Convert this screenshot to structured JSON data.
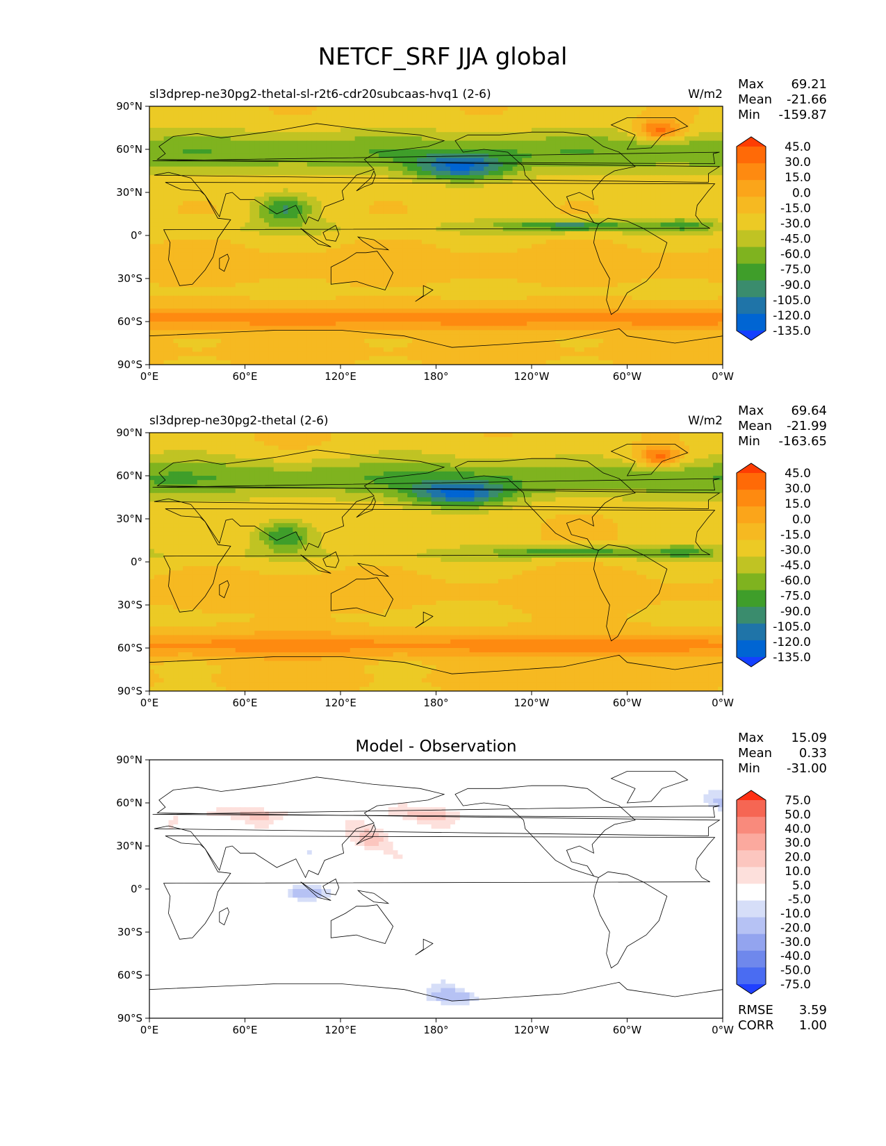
{
  "figure_title": "NETCF_SRF JJA global",
  "colors": {
    "model_scale": [
      "#1440ff",
      "#0065d3",
      "#1f74a8",
      "#3a8c6d",
      "#3f9e2a",
      "#7fb31f",
      "#c0c323",
      "#ecca25",
      "#f6b921",
      "#fba51a",
      "#fe8a10",
      "#ff6a07",
      "#fe3d03"
    ],
    "diff_scale": [
      "#2040ff",
      "#4a6cf2",
      "#6f88ec",
      "#93a4ef",
      "#b6c2f4",
      "#d6def8",
      "#ffffff",
      "#fde0dc",
      "#fcc6bf",
      "#fba99e",
      "#f98a7c",
      "#f66653",
      "#fe2f13"
    ]
  },
  "chart_data": [
    {
      "type": "heatmap",
      "title": "sl3dprep-ne30pg2-thetal-sl-r2t6-cdr20subcaas-hvq1 (2-6)",
      "units": "W/m2",
      "stats": [
        {
          "label": "Max",
          "value": "69.21"
        },
        {
          "label": "Mean",
          "value": "-21.66"
        },
        {
          "label": "Min",
          "value": "-159.87"
        }
      ],
      "x_ticks": [
        "0°E",
        "60°E",
        "120°E",
        "180°",
        "120°W",
        "60°W",
        "0°W"
      ],
      "y_ticks": [
        "90°N",
        "60°N",
        "30°N",
        "0°",
        "30°S",
        "60°S",
        "90°S"
      ],
      "xlim": [
        0,
        360
      ],
      "ylim": [
        -90,
        90
      ],
      "colorbar_levels": [
        "45.0",
        "30.0",
        "15.0",
        "0.0",
        "-15.0",
        "-30.0",
        "-45.0",
        "-60.0",
        "-75.0",
        "-90.0",
        "-105.0",
        "-120.0",
        "-135.0"
      ]
    },
    {
      "type": "heatmap",
      "title": "sl3dprep-ne30pg2-thetal (2-6)",
      "units": "W/m2",
      "stats": [
        {
          "label": "Max",
          "value": "69.64"
        },
        {
          "label": "Mean",
          "value": "-21.99"
        },
        {
          "label": "Min",
          "value": "-163.65"
        }
      ],
      "x_ticks": [
        "0°E",
        "60°E",
        "120°E",
        "180°",
        "120°W",
        "60°W",
        "0°W"
      ],
      "y_ticks": [
        "90°N",
        "60°N",
        "30°N",
        "0°",
        "30°S",
        "60°S",
        "90°S"
      ],
      "xlim": [
        0,
        360
      ],
      "ylim": [
        -90,
        90
      ],
      "colorbar_levels": [
        "45.0",
        "30.0",
        "15.0",
        "0.0",
        "-15.0",
        "-30.0",
        "-45.0",
        "-60.0",
        "-75.0",
        "-90.0",
        "-105.0",
        "-120.0",
        "-135.0"
      ]
    },
    {
      "type": "heatmap",
      "title": "Model - Observation",
      "units": "",
      "stats": [
        {
          "label": "Max",
          "value": "15.09"
        },
        {
          "label": "Mean",
          "value": "0.33"
        },
        {
          "label": "Min",
          "value": "-31.00"
        }
      ],
      "x_ticks": [
        "0°E",
        "60°E",
        "120°E",
        "180°",
        "120°W",
        "60°W",
        "0°W"
      ],
      "y_ticks": [
        "90°N",
        "60°N",
        "30°N",
        "0°",
        "30°S",
        "60°S",
        "90°S"
      ],
      "xlim": [
        0,
        360
      ],
      "ylim": [
        -90,
        90
      ],
      "colorbar_levels": [
        "75.0",
        "50.0",
        "40.0",
        "30.0",
        "20.0",
        "10.0",
        "5.0",
        "-5.0",
        "-10.0",
        "-20.0",
        "-30.0",
        "-40.0",
        "-50.0",
        "-75.0"
      ],
      "footer_stats": [
        {
          "label": "RMSE",
          "value": "3.59"
        },
        {
          "label": "CORR",
          "value": "1.00"
        }
      ]
    }
  ]
}
